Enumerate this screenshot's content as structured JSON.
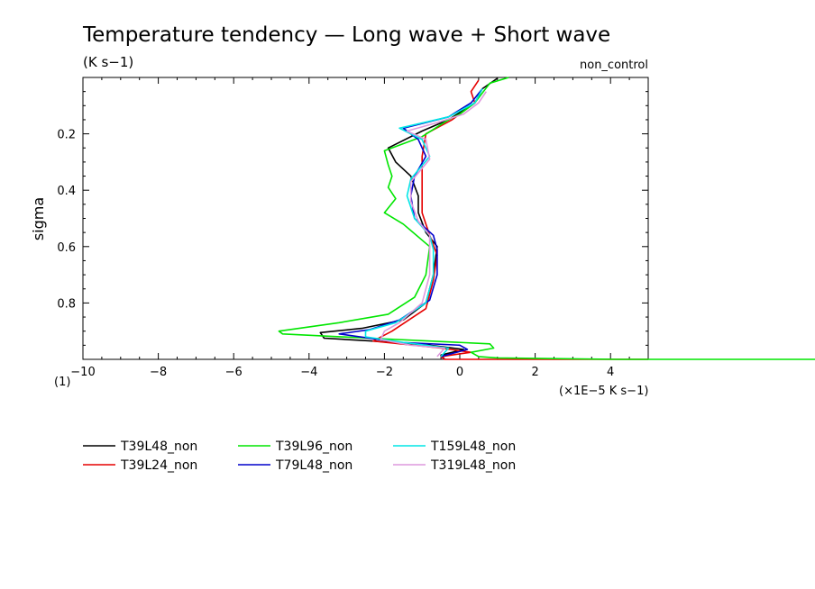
{
  "chart_data": {
    "type": "line",
    "title": "Temperature tendency — Long wave + Short wave",
    "units": "(K s−1)",
    "case_label": "non_control",
    "xlabel": "(×1E−5 K s−1)",
    "ylabel": "sigma",
    "corner_label": "(1)",
    "xlim": [
      -10,
      5
    ],
    "ylim": [
      1.0,
      0.0
    ],
    "x_ticks": [
      -10,
      -8,
      -6,
      -4,
      -2,
      0,
      2,
      4
    ],
    "x_tick_labels": [
      "−10",
      "−8",
      "−6",
      "−4",
      "−2",
      "0",
      "2",
      "4"
    ],
    "y_ticks": [
      0.2,
      0.4,
      0.6,
      0.8
    ],
    "y_tick_labels": [
      "0.2",
      "0.4",
      "0.6",
      "0.8"
    ],
    "grid": false,
    "legend_position": "bottom",
    "series": [
      {
        "name": "T39L48_non",
        "color": "#000000",
        "points": [
          [
            1.0,
            0.003
          ],
          [
            0.6,
            0.04
          ],
          [
            0.4,
            0.09
          ],
          [
            -0.3,
            0.15
          ],
          [
            -1.0,
            0.19
          ],
          [
            -1.9,
            0.25
          ],
          [
            -1.7,
            0.3
          ],
          [
            -1.3,
            0.35
          ],
          [
            -1.1,
            0.42
          ],
          [
            -1.1,
            0.48
          ],
          [
            -0.9,
            0.55
          ],
          [
            -0.6,
            0.6
          ],
          [
            -0.7,
            0.7
          ],
          [
            -0.9,
            0.8
          ],
          [
            -1.5,
            0.86
          ],
          [
            -2.6,
            0.89
          ],
          [
            -3.7,
            0.905
          ],
          [
            -3.6,
            0.925
          ],
          [
            -2.3,
            0.935
          ],
          [
            -0.8,
            0.95
          ],
          [
            0.1,
            0.965
          ],
          [
            -0.5,
            0.985
          ],
          [
            -0.4,
            1.0
          ]
        ]
      },
      {
        "name": "T39L24_non",
        "color": "#e60000",
        "points": [
          [
            0.5,
            0.01
          ],
          [
            0.3,
            0.05
          ],
          [
            0.4,
            0.09
          ],
          [
            -0.2,
            0.15
          ],
          [
            -0.9,
            0.2
          ],
          [
            -1.0,
            0.28
          ],
          [
            -1.0,
            0.38
          ],
          [
            -1.0,
            0.48
          ],
          [
            -0.8,
            0.56
          ],
          [
            -0.6,
            0.63
          ],
          [
            -0.7,
            0.72
          ],
          [
            -0.9,
            0.82
          ],
          [
            -1.8,
            0.9
          ],
          [
            -2.3,
            0.935
          ],
          [
            -0.5,
            0.96
          ],
          [
            0.3,
            0.975
          ],
          [
            -0.5,
            0.99
          ],
          [
            -0.4,
            1.0
          ],
          [
            5.0,
            1.0
          ]
        ]
      },
      {
        "name": "T39L96_non",
        "color": "#00e600",
        "points": [
          [
            1.3,
            0.0
          ],
          [
            0.8,
            0.02
          ],
          [
            0.4,
            0.09
          ],
          [
            0.0,
            0.13
          ],
          [
            -0.3,
            0.15
          ],
          [
            -1.0,
            0.21
          ],
          [
            -2.0,
            0.26
          ],
          [
            -1.9,
            0.31
          ],
          [
            -1.8,
            0.35
          ],
          [
            -1.9,
            0.39
          ],
          [
            -1.7,
            0.43
          ],
          [
            -2.0,
            0.48
          ],
          [
            -1.5,
            0.52
          ],
          [
            -0.8,
            0.6
          ],
          [
            -0.9,
            0.7
          ],
          [
            -1.2,
            0.78
          ],
          [
            -1.9,
            0.84
          ],
          [
            -3.2,
            0.87
          ],
          [
            -4.8,
            0.9
          ],
          [
            -4.7,
            0.91
          ],
          [
            -2.4,
            0.925
          ],
          [
            0.8,
            0.945
          ],
          [
            0.9,
            0.96
          ],
          [
            0.3,
            0.975
          ],
          [
            0.5,
            0.99
          ],
          [
            1.0,
            0.995
          ],
          [
            4.2,
            1.0
          ],
          [
            10.0,
            1.0
          ]
        ]
      },
      {
        "name": "T79L48_non",
        "color": "#0000cc",
        "points": [
          [
            0.6,
            0.04
          ],
          [
            0.3,
            0.09
          ],
          [
            -0.3,
            0.14
          ],
          [
            -1.5,
            0.18
          ],
          [
            -1.1,
            0.22
          ],
          [
            -0.9,
            0.28
          ],
          [
            -1.2,
            0.35
          ],
          [
            -1.3,
            0.42
          ],
          [
            -1.2,
            0.5
          ],
          [
            -0.7,
            0.56
          ],
          [
            -0.6,
            0.61
          ],
          [
            -0.6,
            0.7
          ],
          [
            -0.8,
            0.79
          ],
          [
            -1.6,
            0.86
          ],
          [
            -2.4,
            0.895
          ],
          [
            -3.2,
            0.91
          ],
          [
            -1.6,
            0.94
          ],
          [
            0.0,
            0.95
          ],
          [
            0.2,
            0.965
          ],
          [
            -0.5,
            0.99
          ]
        ]
      },
      {
        "name": "T159L48_non",
        "color": "#00e6e6",
        "points": [
          [
            0.6,
            0.04
          ],
          [
            0.4,
            0.09
          ],
          [
            -0.3,
            0.14
          ],
          [
            -1.6,
            0.18
          ],
          [
            -1.0,
            0.22
          ],
          [
            -0.8,
            0.28
          ],
          [
            -1.3,
            0.36
          ],
          [
            -1.4,
            0.42
          ],
          [
            -1.2,
            0.5
          ],
          [
            -0.8,
            0.56
          ],
          [
            -0.7,
            0.61
          ],
          [
            -0.7,
            0.7
          ],
          [
            -0.9,
            0.8
          ],
          [
            -1.7,
            0.87
          ],
          [
            -2.5,
            0.9
          ],
          [
            -2.5,
            0.92
          ],
          [
            -1.5,
            0.94
          ],
          [
            -0.3,
            0.96
          ],
          [
            -0.5,
            0.99
          ]
        ]
      },
      {
        "name": "T319L48_non",
        "color": "#dd99dd",
        "points": [
          [
            0.7,
            0.05
          ],
          [
            0.5,
            0.09
          ],
          [
            0.1,
            0.13
          ],
          [
            -0.6,
            0.16
          ],
          [
            -1.4,
            0.19
          ],
          [
            -0.9,
            0.22
          ],
          [
            -0.8,
            0.29
          ],
          [
            -1.3,
            0.37
          ],
          [
            -1.3,
            0.44
          ],
          [
            -1.1,
            0.51
          ],
          [
            -0.8,
            0.56
          ],
          [
            -0.8,
            0.62
          ],
          [
            -0.8,
            0.7
          ],
          [
            -1.0,
            0.8
          ],
          [
            -1.6,
            0.87
          ],
          [
            -2.0,
            0.9
          ],
          [
            -2.1,
            0.93
          ],
          [
            -1.3,
            0.95
          ],
          [
            -0.4,
            0.96
          ],
          [
            -0.6,
            0.99
          ]
        ]
      }
    ]
  }
}
